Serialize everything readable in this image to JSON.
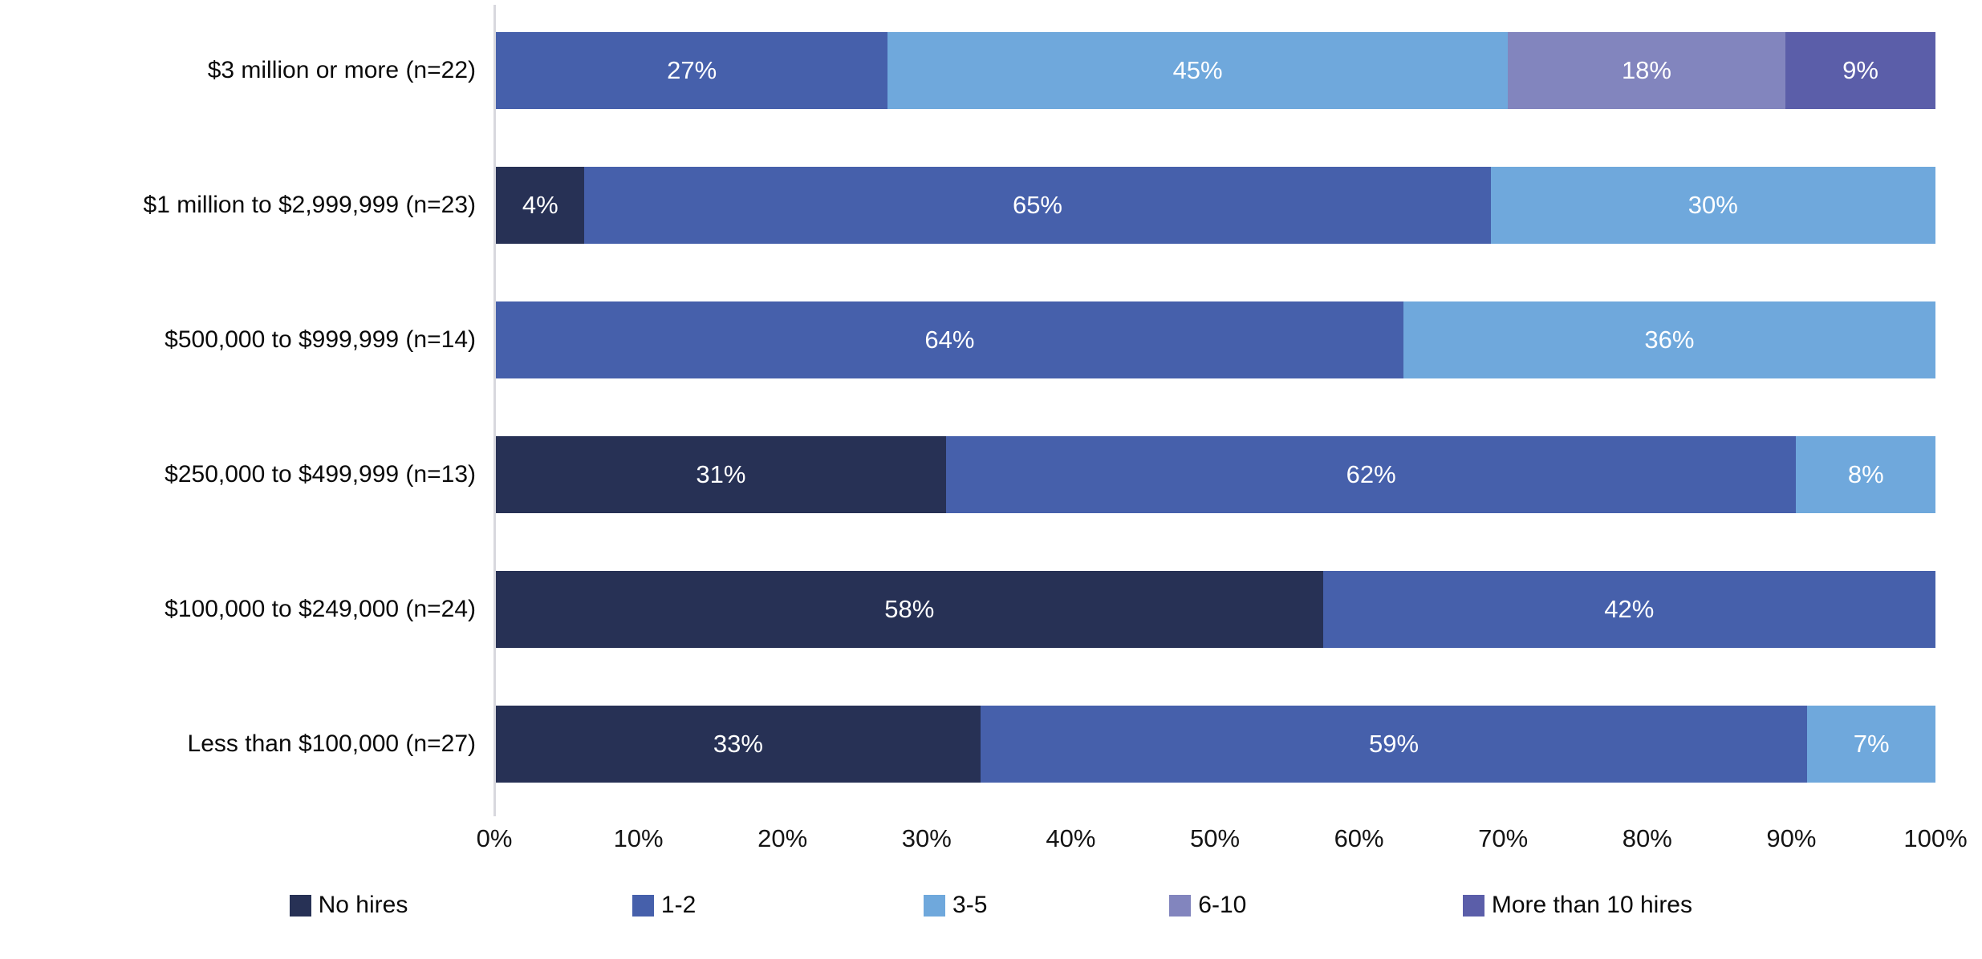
{
  "chart_data": {
    "type": "bar",
    "orientation": "horizontal",
    "stacked": true,
    "normalized_to_100": true,
    "title": "",
    "xlabel": "",
    "ylabel": "",
    "categories": [
      "$3 million or more (n=22)",
      "$1 million to $2,999,999 (n=23)",
      "$500,000 to $999,999 (n=14)",
      "$250,000 to $499,999 (n=13)",
      "$100,000 to $249,000 (n=24)",
      "Less than $100,000 (n=27)"
    ],
    "series": [
      {
        "name": "No hires",
        "color": "#273155",
        "values": [
          0,
          4,
          0,
          31,
          58,
          33
        ]
      },
      {
        "name": "1-2",
        "color": "#4660AB",
        "values": [
          27,
          65,
          64,
          62,
          42,
          59
        ]
      },
      {
        "name": "3-5",
        "color": "#6FA8DC",
        "values": [
          45,
          30,
          36,
          8,
          0,
          7
        ]
      },
      {
        "name": "6-10",
        "color": "#8285BE",
        "values": [
          18,
          0,
          0,
          0,
          0,
          0
        ]
      },
      {
        "name": "More than 10 hires",
        "color": "#5B5EA9",
        "values": [
          9,
          0,
          0,
          0,
          0,
          0
        ]
      }
    ],
    "value_label_format": "{v}%",
    "x_axis": {
      "min": 0,
      "max": 100,
      "step": 10,
      "tick_labels": [
        "0%",
        "10%",
        "20%",
        "30%",
        "40%",
        "50%",
        "60%",
        "70%",
        "80%",
        "90%",
        "100%"
      ],
      "grid": false
    },
    "legend": {
      "position": "bottom",
      "entries": [
        "No hires",
        "1-2",
        "3-5",
        "6-10",
        "More than 10 hires"
      ]
    }
  },
  "styles": {
    "background": "#FFFFFF",
    "axis_line_color": "#D8D8DE",
    "category_text_color": "#0A0A0A",
    "tick_text_color": "#141414",
    "value_text_color": "#FFFFFF"
  }
}
